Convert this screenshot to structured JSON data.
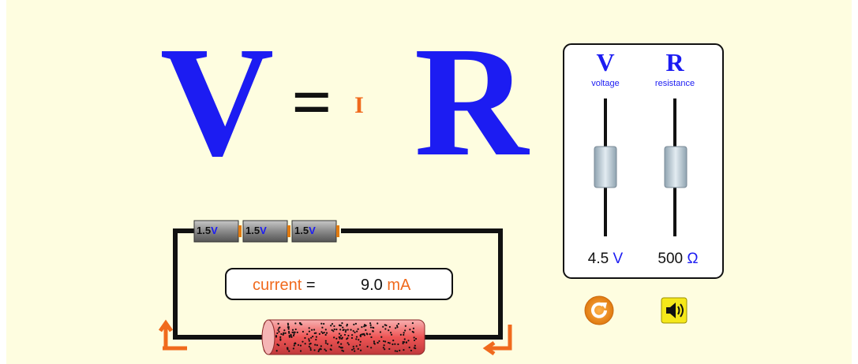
{
  "equation": {
    "left": "V",
    "equals": "=",
    "current": "I",
    "right": "R"
  },
  "controls": {
    "sliders": [
      {
        "symbol": "V",
        "name": "voltage",
        "value": "4.5",
        "unit": "V"
      },
      {
        "symbol": "R",
        "name": "resistance",
        "value": "500",
        "unit": "Ω"
      }
    ]
  },
  "circuit": {
    "batteries": [
      {
        "value": "1.5",
        "unit": "V"
      },
      {
        "value": "1.5",
        "unit": "V"
      },
      {
        "value": "1.5",
        "unit": "V"
      }
    ],
    "current": {
      "label": "current",
      "equals": "=",
      "value": "9.0",
      "unit": "mA"
    }
  }
}
